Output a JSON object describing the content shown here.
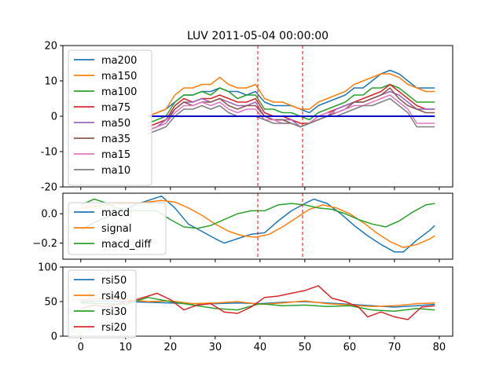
{
  "title": "LUV 2011-05-04 00:00:00",
  "colors": {
    "blue": "#1f77b4",
    "orange": "#ff7f0e",
    "green": "#2ca02c",
    "red": "#d62728",
    "purple": "#9467bd",
    "brown": "#8c564b",
    "pink": "#e377c2",
    "gray": "#7f7f7f",
    "zero_line": "#0000cc",
    "vline": "#ff0000"
  },
  "chart_data": [
    {
      "type": "line",
      "title": "LUV 2011-05-04 00:00:00",
      "xlim": [
        -4,
        83
      ],
      "ylim": [
        -20,
        20
      ],
      "yticks": [
        -20,
        -10,
        0,
        10,
        20
      ],
      "legend_position": "top-left",
      "vlines": [
        39.5,
        49.5
      ],
      "hline": 0,
      "hline_range": [
        15,
        79
      ],
      "series": [
        {
          "name": "ma200",
          "color": "blue",
          "x": [
            15,
            17,
            19,
            21,
            23,
            25,
            27,
            29,
            31,
            33,
            35,
            37,
            39,
            41,
            43,
            45,
            47,
            49,
            51,
            53,
            55,
            57,
            59,
            61,
            63,
            65,
            67,
            69,
            71,
            73,
            75,
            77,
            79
          ],
          "values": [
            0,
            1,
            2,
            4,
            6,
            6,
            7,
            7,
            8,
            7,
            7,
            6,
            7,
            4,
            3,
            3,
            3,
            2,
            1,
            3,
            4,
            5,
            6,
            8,
            8,
            10,
            12,
            13,
            12,
            10,
            8,
            8,
            8
          ]
        },
        {
          "name": "ma150",
          "color": "orange",
          "x": [
            15,
            17,
            19,
            21,
            23,
            25,
            27,
            29,
            31,
            33,
            35,
            37,
            39,
            41,
            43,
            45,
            47,
            49,
            51,
            53,
            55,
            57,
            59,
            61,
            63,
            65,
            67,
            69,
            71,
            73,
            75,
            77,
            79
          ],
          "values": [
            0,
            1,
            2,
            6,
            8,
            8,
            9,
            9,
            11,
            9,
            8,
            8,
            9,
            5,
            4,
            4,
            3,
            2,
            2,
            4,
            5,
            6,
            7,
            9,
            10,
            11,
            12,
            12,
            11,
            9,
            8,
            7,
            7
          ]
        },
        {
          "name": "ma100",
          "color": "green",
          "x": [
            15,
            17,
            19,
            21,
            23,
            25,
            27,
            29,
            31,
            33,
            35,
            37,
            39,
            41,
            43,
            45,
            47,
            49,
            51,
            53,
            55,
            57,
            59,
            61,
            63,
            65,
            67,
            69,
            71,
            73,
            75,
            77,
            79
          ],
          "values": [
            -2,
            -1,
            0,
            4,
            6,
            6,
            7,
            6,
            8,
            7,
            5,
            6,
            6,
            2,
            2,
            1,
            1,
            0,
            -1,
            1,
            2,
            3,
            4,
            6,
            6,
            8,
            8,
            9,
            8,
            6,
            4,
            4,
            4
          ]
        },
        {
          "name": "ma75",
          "color": "red",
          "x": [
            15,
            17,
            19,
            21,
            23,
            25,
            27,
            29,
            31,
            33,
            35,
            37,
            39,
            41,
            43,
            45,
            47,
            49,
            51,
            53,
            55,
            57,
            59,
            61,
            63,
            65,
            67,
            69,
            71,
            73,
            75,
            77,
            79
          ],
          "values": [
            -3,
            -2,
            -1,
            3,
            5,
            4,
            5,
            5,
            6,
            5,
            4,
            4,
            5,
            1,
            0,
            0,
            -1,
            -2,
            -2,
            0,
            1,
            2,
            3,
            4,
            5,
            6,
            7,
            9,
            7,
            5,
            3,
            2,
            2
          ]
        },
        {
          "name": "ma50",
          "color": "purple",
          "x": [
            15,
            17,
            19,
            21,
            23,
            25,
            27,
            29,
            31,
            33,
            35,
            37,
            39,
            41,
            43,
            45,
            47,
            49,
            51,
            53,
            55,
            57,
            59,
            61,
            63,
            65,
            67,
            69,
            71,
            73,
            75,
            77,
            79
          ],
          "values": [
            -4,
            -3,
            -1,
            2,
            4,
            4,
            5,
            4,
            5,
            4,
            3,
            3,
            4,
            0,
            -1,
            -1,
            -1,
            -3,
            -2,
            -1,
            0,
            2,
            3,
            4,
            4,
            5,
            6,
            7,
            6,
            4,
            2,
            2,
            2
          ]
        },
        {
          "name": "ma35",
          "color": "brown",
          "x": [
            15,
            17,
            19,
            21,
            23,
            25,
            27,
            29,
            31,
            33,
            35,
            37,
            39,
            41,
            43,
            45,
            47,
            49,
            51,
            53,
            55,
            57,
            59,
            61,
            63,
            65,
            67,
            69,
            71,
            73,
            75,
            77,
            79
          ],
          "values": [
            -4,
            -3,
            -2,
            2,
            4,
            3,
            4,
            4,
            5,
            3,
            2,
            3,
            3,
            0,
            -1,
            -1,
            -2,
            -3,
            -2,
            -1,
            0,
            1,
            2,
            4,
            4,
            5,
            6,
            8,
            5,
            3,
            2,
            1,
            1
          ]
        },
        {
          "name": "ma15",
          "color": "pink",
          "x": [
            15,
            17,
            19,
            21,
            23,
            25,
            27,
            29,
            31,
            33,
            35,
            37,
            39,
            41,
            43,
            45,
            47,
            49,
            51,
            53,
            55,
            57,
            59,
            61,
            63,
            65,
            67,
            69,
            71,
            73,
            75,
            77,
            79
          ],
          "values": [
            -4,
            -3,
            -2,
            1,
            3,
            3,
            4,
            3,
            4,
            2,
            1,
            2,
            2,
            -1,
            -1,
            -2,
            -2,
            -3,
            -2,
            0,
            1,
            1,
            2,
            3,
            3,
            4,
            5,
            6,
            4,
            2,
            -2,
            -2,
            -2
          ]
        },
        {
          "name": "ma10",
          "color": "gray",
          "x": [
            15,
            17,
            19,
            21,
            23,
            25,
            27,
            29,
            31,
            33,
            35,
            37,
            39,
            41,
            43,
            45,
            47,
            49,
            51,
            53,
            55,
            57,
            59,
            61,
            63,
            65,
            67,
            69,
            71,
            73,
            75,
            77,
            79
          ],
          "values": [
            -5,
            -4,
            -3,
            0,
            2,
            2,
            3,
            2,
            3,
            1,
            0,
            0,
            0,
            -1,
            -2,
            -2,
            -2,
            -3,
            -2,
            -1,
            0,
            0,
            1,
            2,
            3,
            3,
            4,
            5,
            3,
            1,
            -3,
            -3,
            -3
          ]
        }
      ]
    },
    {
      "type": "line",
      "xlim": [
        -4,
        83
      ],
      "ylim": [
        -0.31,
        0.14
      ],
      "yticks": [
        -0.2,
        0.0
      ],
      "ytick_labels": [
        "−0.2",
        "0.0"
      ],
      "legend_position": "bottom-left",
      "vlines": [
        39.5,
        49.5
      ],
      "series": [
        {
          "name": "macd",
          "color": "blue",
          "x": [
            0,
            3,
            6,
            9,
            12,
            15,
            18,
            21,
            24,
            27,
            30,
            32,
            35,
            38,
            41,
            44,
            47,
            50,
            52,
            55,
            58,
            61,
            64,
            67,
            70,
            72,
            75,
            78,
            79
          ],
          "values": [
            -0.11,
            -0.06,
            -0.02,
            0.02,
            0.06,
            0.09,
            0.12,
            0.04,
            -0.07,
            -0.12,
            -0.17,
            -0.2,
            -0.17,
            -0.14,
            -0.13,
            -0.05,
            0.02,
            0.07,
            0.1,
            0.07,
            0.0,
            -0.08,
            -0.15,
            -0.21,
            -0.26,
            -0.26,
            -0.18,
            -0.11,
            -0.08
          ]
        },
        {
          "name": "signal",
          "color": "orange",
          "x": [
            0,
            3,
            6,
            9,
            12,
            15,
            18,
            21,
            24,
            27,
            30,
            33,
            36,
            39,
            42,
            45,
            48,
            51,
            54,
            57,
            60,
            63,
            66,
            69,
            72,
            75,
            78,
            79
          ],
          "values": [
            0.04,
            0.05,
            0.06,
            0.07,
            0.07,
            0.08,
            0.09,
            0.08,
            0.04,
            -0.01,
            -0.07,
            -0.12,
            -0.15,
            -0.16,
            -0.14,
            -0.09,
            -0.03,
            0.03,
            0.06,
            0.04,
            0.0,
            -0.06,
            -0.13,
            -0.19,
            -0.23,
            -0.21,
            -0.17,
            -0.15
          ]
        },
        {
          "name": "macd_diff",
          "color": "green",
          "x": [
            0,
            3,
            5,
            8,
            11,
            14,
            17,
            20,
            23,
            26,
            29,
            32,
            35,
            38,
            41,
            44,
            47,
            50,
            53,
            56,
            59,
            62,
            65,
            68,
            71,
            74,
            77,
            79
          ],
          "values": [
            0.06,
            0.1,
            0.08,
            0.04,
            0.02,
            0.02,
            0.02,
            -0.04,
            -0.09,
            -0.1,
            -0.08,
            -0.04,
            0.0,
            0.02,
            0.02,
            0.06,
            0.07,
            0.06,
            0.04,
            0.03,
            0.0,
            -0.04,
            -0.07,
            -0.09,
            -0.05,
            0.01,
            0.06,
            0.07
          ]
        }
      ]
    },
    {
      "type": "line",
      "xlim": [
        -4,
        83
      ],
      "ylim": [
        0,
        100
      ],
      "yticks": [
        0,
        50,
        100
      ],
      "xticks": [
        0,
        10,
        20,
        30,
        40,
        50,
        60,
        70,
        80
      ],
      "legend_position": "top-left",
      "vlines": [],
      "series": [
        {
          "name": "rsi50",
          "color": "blue",
          "x": [
            0,
            5,
            10,
            15,
            20,
            25,
            30,
            35,
            40,
            45,
            50,
            55,
            60,
            65,
            70,
            75,
            79
          ],
          "values": [
            50,
            51,
            50,
            49,
            48,
            47,
            47,
            48,
            47,
            49,
            50,
            48,
            46,
            44,
            42,
            44,
            46
          ]
        },
        {
          "name": "rsi40",
          "color": "orange",
          "x": [
            0,
            5,
            10,
            15,
            20,
            25,
            30,
            35,
            40,
            45,
            50,
            55,
            60,
            65,
            70,
            75,
            79
          ],
          "values": [
            52,
            55,
            53,
            50,
            51,
            47,
            48,
            50,
            46,
            48,
            51,
            47,
            45,
            43,
            44,
            47,
            48
          ]
        },
        {
          "name": "rsi30",
          "color": "green",
          "x": [
            0,
            5,
            10,
            15,
            20,
            25,
            30,
            35,
            40,
            45,
            50,
            55,
            60,
            65,
            70,
            75,
            79
          ],
          "values": [
            48,
            47,
            46,
            56,
            50,
            45,
            40,
            38,
            47,
            44,
            45,
            43,
            44,
            38,
            36,
            40,
            38
          ]
        },
        {
          "name": "rsi20",
          "color": "red",
          "x": [
            0,
            3,
            6,
            9,
            12,
            15,
            17,
            20,
            23,
            26,
            29,
            32,
            35,
            38,
            41,
            44,
            47,
            50,
            53,
            56,
            59,
            62,
            64,
            67,
            70,
            73,
            76,
            79
          ],
          "values": [
            40,
            45,
            42,
            48,
            52,
            58,
            62,
            53,
            38,
            45,
            47,
            35,
            33,
            42,
            56,
            58,
            62,
            66,
            73,
            55,
            50,
            42,
            28,
            35,
            28,
            24,
            42,
            44
          ]
        }
      ]
    }
  ]
}
